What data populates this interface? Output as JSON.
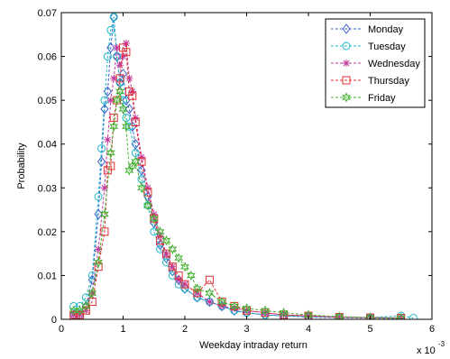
{
  "chart_data": {
    "type": "line",
    "title": "",
    "xlabel": "Weekday intraday return",
    "ylabel": "Probability",
    "x_multiplier_label": "x 10",
    "x_multiplier_exponent": "-3",
    "xlim": [
      0,
      6
    ],
    "ylim": [
      0,
      0.07
    ],
    "xticks": [
      "0",
      "1",
      "2",
      "3",
      "4",
      "5",
      "6"
    ],
    "yticks": [
      "0",
      "0.01",
      "0.02",
      "0.03",
      "0.04",
      "0.05",
      "0.06",
      "0.07"
    ],
    "grid": false,
    "legend_position": "top-right",
    "series": [
      {
        "name": "Monday",
        "color": "#3a5fcd",
        "marker": "diamond",
        "x": [
          0.2,
          0.3,
          0.4,
          0.5,
          0.6,
          0.65,
          0.7,
          0.75,
          0.8,
          0.85,
          0.9,
          0.95,
          1.0,
          1.05,
          1.1,
          1.15,
          1.2,
          1.3,
          1.4,
          1.5,
          1.6,
          1.7,
          1.8,
          1.9,
          2.0,
          2.2,
          2.4,
          2.6,
          2.8,
          3.0,
          3.3,
          3.6,
          4.0,
          4.5,
          5.0,
          5.5
        ],
        "y": [
          0.001,
          0.001,
          0.003,
          0.009,
          0.024,
          0.036,
          0.048,
          0.052,
          0.062,
          0.069,
          0.06,
          0.054,
          0.056,
          0.05,
          0.048,
          0.044,
          0.04,
          0.034,
          0.028,
          0.022,
          0.017,
          0.014,
          0.011,
          0.009,
          0.007,
          0.005,
          0.004,
          0.003,
          0.002,
          0.0015,
          0.001,
          0.0008,
          0.0005,
          0.0004,
          0.0003,
          0.0002
        ]
      },
      {
        "name": "Tuesday",
        "color": "#22b8c8",
        "marker": "circle",
        "x": [
          0.2,
          0.3,
          0.4,
          0.5,
          0.6,
          0.65,
          0.7,
          0.75,
          0.8,
          0.85,
          0.9,
          0.95,
          1.0,
          1.05,
          1.1,
          1.2,
          1.3,
          1.4,
          1.5,
          1.6,
          1.7,
          1.8,
          1.9,
          2.0,
          2.2,
          2.4,
          2.6,
          2.8,
          3.0,
          3.3,
          3.6,
          4.0,
          4.5,
          5.0,
          5.5,
          5.7
        ],
        "y": [
          0.003,
          0.003,
          0.005,
          0.01,
          0.028,
          0.039,
          0.05,
          0.06,
          0.066,
          0.069,
          0.06,
          0.054,
          0.05,
          0.046,
          0.044,
          0.038,
          0.032,
          0.026,
          0.02,
          0.016,
          0.013,
          0.01,
          0.008,
          0.007,
          0.005,
          0.004,
          0.003,
          0.002,
          0.0015,
          0.001,
          0.0008,
          0.0006,
          0.0005,
          0.0004,
          0.0008,
          0.0003
        ]
      },
      {
        "name": "Wednesday",
        "color": "#c0389a",
        "marker": "star",
        "x": [
          0.2,
          0.3,
          0.4,
          0.5,
          0.6,
          0.7,
          0.75,
          0.8,
          0.85,
          0.9,
          0.95,
          1.0,
          1.05,
          1.1,
          1.15,
          1.2,
          1.3,
          1.4,
          1.5,
          1.6,
          1.7,
          1.8,
          1.9,
          2.0,
          2.2,
          2.4,
          2.6,
          2.8,
          3.0,
          3.3,
          3.6,
          4.0,
          4.5,
          5.0,
          5.5
        ],
        "y": [
          0.001,
          0.001,
          0.002,
          0.006,
          0.016,
          0.03,
          0.041,
          0.05,
          0.055,
          0.062,
          0.058,
          0.06,
          0.063,
          0.055,
          0.052,
          0.046,
          0.037,
          0.03,
          0.024,
          0.019,
          0.015,
          0.012,
          0.009,
          0.008,
          0.006,
          0.004,
          0.003,
          0.0025,
          0.002,
          0.0015,
          0.001,
          0.0008,
          0.0005,
          0.0004,
          0.0003
        ]
      },
      {
        "name": "Thursday",
        "color": "#e03030",
        "marker": "square",
        "x": [
          0.2,
          0.3,
          0.4,
          0.5,
          0.6,
          0.7,
          0.75,
          0.8,
          0.85,
          0.9,
          0.95,
          1.0,
          1.05,
          1.1,
          1.15,
          1.2,
          1.3,
          1.4,
          1.5,
          1.6,
          1.7,
          1.8,
          1.9,
          2.0,
          2.2,
          2.4,
          2.6,
          2.8,
          3.0,
          3.3,
          3.6,
          4.0,
          4.5,
          5.0,
          5.5
        ],
        "y": [
          0.001,
          0.001,
          0.002,
          0.004,
          0.012,
          0.02,
          0.034,
          0.035,
          0.046,
          0.05,
          0.055,
          0.062,
          0.061,
          0.052,
          0.051,
          0.045,
          0.036,
          0.029,
          0.023,
          0.018,
          0.015,
          0.012,
          0.01,
          0.008,
          0.006,
          0.009,
          0.004,
          0.003,
          0.002,
          0.0015,
          0.001,
          0.0008,
          0.0005,
          0.0004,
          0.0003
        ]
      },
      {
        "name": "Friday",
        "color": "#44b030",
        "marker": "hexagram",
        "x": [
          0.2,
          0.3,
          0.4,
          0.5,
          0.6,
          0.7,
          0.8,
          0.85,
          0.9,
          0.95,
          1.0,
          1.05,
          1.1,
          1.15,
          1.2,
          1.3,
          1.4,
          1.5,
          1.6,
          1.7,
          1.8,
          1.9,
          2.0,
          2.1,
          2.2,
          2.4,
          2.6,
          2.8,
          3.0,
          3.3,
          3.6,
          4.0,
          4.5,
          5.0,
          5.5
        ],
        "y": [
          0.002,
          0.002,
          0.003,
          0.006,
          0.013,
          0.024,
          0.038,
          0.044,
          0.05,
          0.052,
          0.048,
          0.044,
          0.034,
          0.035,
          0.036,
          0.03,
          0.026,
          0.023,
          0.02,
          0.018,
          0.016,
          0.014,
          0.012,
          0.01,
          0.007,
          0.006,
          0.004,
          0.003,
          0.0025,
          0.002,
          0.0015,
          0.001,
          0.0006,
          0.0004,
          0.0003
        ]
      }
    ]
  }
}
